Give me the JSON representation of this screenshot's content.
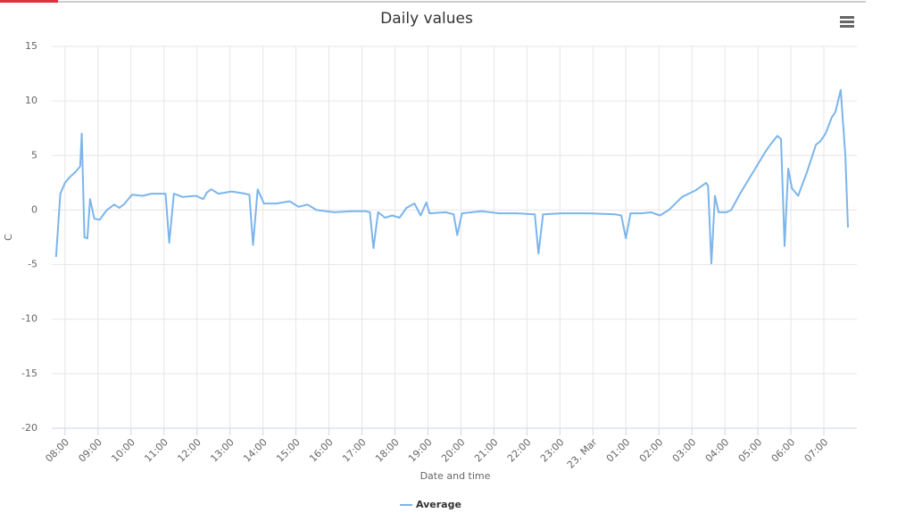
{
  "chart_data": {
    "type": "line",
    "title": "Daily values",
    "x_label": "Date and time",
    "y_label": "C",
    "xlim": [
      -0.4,
      24
    ],
    "ylim": [
      -20,
      15
    ],
    "yticks": [
      -20,
      -15,
      -10,
      -5,
      0,
      5,
      10,
      15
    ],
    "grid": true,
    "legend": "bottom",
    "xticks": [
      {
        "value": 0,
        "label": "08:00"
      },
      {
        "value": 1,
        "label": "09:00"
      },
      {
        "value": 2,
        "label": "10:00"
      },
      {
        "value": 3,
        "label": "11:00"
      },
      {
        "value": 4,
        "label": "12:00"
      },
      {
        "value": 5,
        "label": "13:00"
      },
      {
        "value": 6,
        "label": "14:00"
      },
      {
        "value": 7,
        "label": "15:00"
      },
      {
        "value": 8,
        "label": "16:00"
      },
      {
        "value": 9,
        "label": "17:00"
      },
      {
        "value": 10,
        "label": "18:00"
      },
      {
        "value": 11,
        "label": "19:00"
      },
      {
        "value": 12,
        "label": "20:00"
      },
      {
        "value": 13,
        "label": "21:00"
      },
      {
        "value": 14,
        "label": "22:00"
      },
      {
        "value": 15,
        "label": "23:00"
      },
      {
        "value": 16,
        "label": "23. Mar"
      },
      {
        "value": 17,
        "label": "01:00"
      },
      {
        "value": 18,
        "label": "02:00"
      },
      {
        "value": 19,
        "label": "03:00"
      },
      {
        "value": 20,
        "label": "04:00"
      },
      {
        "value": 21,
        "label": "05:00"
      },
      {
        "value": 22,
        "label": "06:00"
      },
      {
        "value": 23,
        "label": "07:00"
      }
    ],
    "x": [
      -0.27,
      -0.14,
      0,
      0.14,
      0.32,
      0.46,
      0.51,
      0.59,
      0.68,
      0.76,
      0.89,
      1.05,
      1.27,
      1.49,
      1.65,
      1.81,
      2.03,
      2.35,
      2.62,
      2.89,
      3.05,
      3.16,
      3.3,
      3.57,
      3.97,
      4.19,
      4.3,
      4.43,
      4.65,
      5.05,
      5.27,
      5.46,
      5.59,
      5.7,
      5.84,
      6.03,
      6.41,
      6.81,
      7.08,
      7.35,
      7.62,
      8.16,
      8.7,
      9.11,
      9.24,
      9.35,
      9.49,
      9.7,
      9.92,
      10.14,
      10.35,
      10.59,
      10.78,
      10.95,
      11.05,
      11.54,
      11.78,
      11.89,
      12.03,
      12.62,
      13.16,
      13.7,
      14.24,
      14.35,
      14.49,
      15.05,
      15.86,
      16.68,
      16.86,
      17,
      17.14,
      17.49,
      17.76,
      18.03,
      18.3,
      18.7,
      19.11,
      19.43,
      19.49,
      19.59,
      19.7,
      19.81,
      20.05,
      20.19,
      20.46,
      20.86,
      21.22,
      21.38,
      21.59,
      21.7,
      21.81,
      21.92,
      22.03,
      22.22,
      22.49,
      22.76,
      22.89,
      23.05,
      23.24,
      23.35,
      23.51,
      23.65,
      23.73
    ],
    "series": [
      {
        "name": "Average",
        "color": "#7cb5ec",
        "values": [
          -4.3,
          1.5,
          2.5,
          3,
          3.5,
          4,
          7,
          -2.5,
          -2.6,
          1,
          -0.8,
          -0.9,
          0,
          0.5,
          0.2,
          0.6,
          1.4,
          1.3,
          1.5,
          1.5,
          1.5,
          -3,
          1.5,
          1.2,
          1.3,
          1,
          1.6,
          1.9,
          1.5,
          1.7,
          1.6,
          1.5,
          1.4,
          -3.2,
          1.9,
          0.6,
          0.6,
          0.8,
          0.3,
          0.5,
          0,
          -0.2,
          -0.1,
          -0.1,
          -0.2,
          -3.5,
          -0.2,
          -0.7,
          -0.5,
          -0.7,
          0.2,
          0.6,
          -0.5,
          0.7,
          -0.3,
          -0.2,
          -0.4,
          -2.3,
          -0.3,
          -0.1,
          -0.3,
          -0.3,
          -0.4,
          -4,
          -0.4,
          -0.3,
          -0.3,
          -0.4,
          -0.5,
          -2.6,
          -0.3,
          -0.3,
          -0.2,
          -0.5,
          0,
          1.2,
          1.8,
          2.5,
          2.2,
          -4.9,
          1.3,
          -0.2,
          -0.2,
          0,
          1.5,
          3.5,
          5.3,
          6,
          6.8,
          6.5,
          -3.3,
          3.8,
          2,
          1.3,
          3.5,
          6,
          6.3,
          7,
          8.5,
          9,
          11,
          5,
          -1.6
        ]
      }
    ]
  }
}
